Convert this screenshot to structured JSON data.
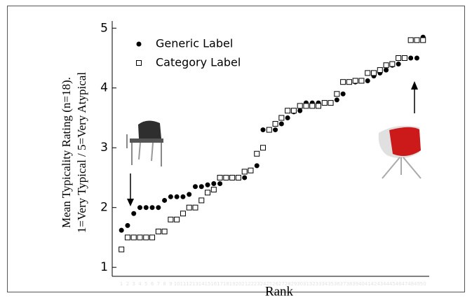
{
  "chart_data": {
    "type": "scatter",
    "xlabel": "Rank",
    "ylabel": [
      "Mean Typicality Rating (n=18).",
      "1=Very Typical / 5=Very Atypical"
    ],
    "x": [
      1,
      2,
      3,
      4,
      5,
      6,
      7,
      8,
      9,
      10,
      11,
      12,
      13,
      14,
      15,
      16,
      17,
      18,
      19,
      20,
      21,
      22,
      23,
      24,
      25,
      26,
      27,
      28,
      29,
      30,
      31,
      32,
      33,
      34,
      35,
      36,
      37,
      38,
      39,
      40,
      41,
      42,
      43,
      44,
      45,
      46,
      47,
      48,
      49,
      50
    ],
    "series": [
      {
        "name": "Generic Label",
        "color": "#000000",
        "marker": "filled-circle",
        "values": [
          1.62,
          1.7,
          1.9,
          2.0,
          2.0,
          2.0,
          2.0,
          2.12,
          2.18,
          2.18,
          2.18,
          2.22,
          2.35,
          2.35,
          2.38,
          2.4,
          2.4,
          2.5,
          2.5,
          2.5,
          2.5,
          2.62,
          2.7,
          3.3,
          3.3,
          3.3,
          3.4,
          3.5,
          3.6,
          3.62,
          3.75,
          3.75,
          3.75,
          3.75,
          3.75,
          3.8,
          3.9,
          4.1,
          4.1,
          4.12,
          4.12,
          4.2,
          4.25,
          4.3,
          4.38,
          4.4,
          4.5,
          4.5,
          4.5,
          4.85
        ]
      },
      {
        "name": "Category Label",
        "color": "#000000",
        "marker": "open-square",
        "values": [
          1.3,
          1.5,
          1.5,
          1.5,
          1.5,
          1.5,
          1.6,
          1.6,
          1.8,
          1.8,
          1.9,
          2.0,
          2.0,
          2.12,
          2.25,
          2.3,
          2.5,
          2.5,
          2.5,
          2.5,
          2.6,
          2.62,
          2.9,
          3.0,
          3.3,
          3.4,
          3.5,
          3.62,
          3.62,
          3.7,
          3.7,
          3.7,
          3.7,
          3.75,
          3.75,
          3.9,
          4.1,
          4.1,
          4.12,
          4.12,
          4.25,
          4.25,
          4.3,
          4.38,
          4.4,
          4.5,
          4.5,
          4.8,
          4.8,
          4.8
        ]
      }
    ],
    "xlim": [
      -0.5,
      51
    ],
    "xticks": [
      1,
      2,
      3,
      4,
      5,
      6,
      7,
      8,
      9,
      10,
      11,
      12,
      13,
      14,
      15,
      16,
      17,
      18,
      19,
      20,
      21,
      22,
      23,
      24,
      25,
      26,
      27,
      28,
      29,
      30,
      31,
      32,
      33,
      34,
      35,
      36,
      37,
      38,
      39,
      40,
      41,
      42,
      43,
      44,
      45,
      46,
      47,
      48,
      49,
      50
    ],
    "ylim": [
      0.85,
      5.12
    ],
    "yticks": [
      1,
      2,
      3,
      4,
      5
    ],
    "legend": "upper-left"
  }
}
